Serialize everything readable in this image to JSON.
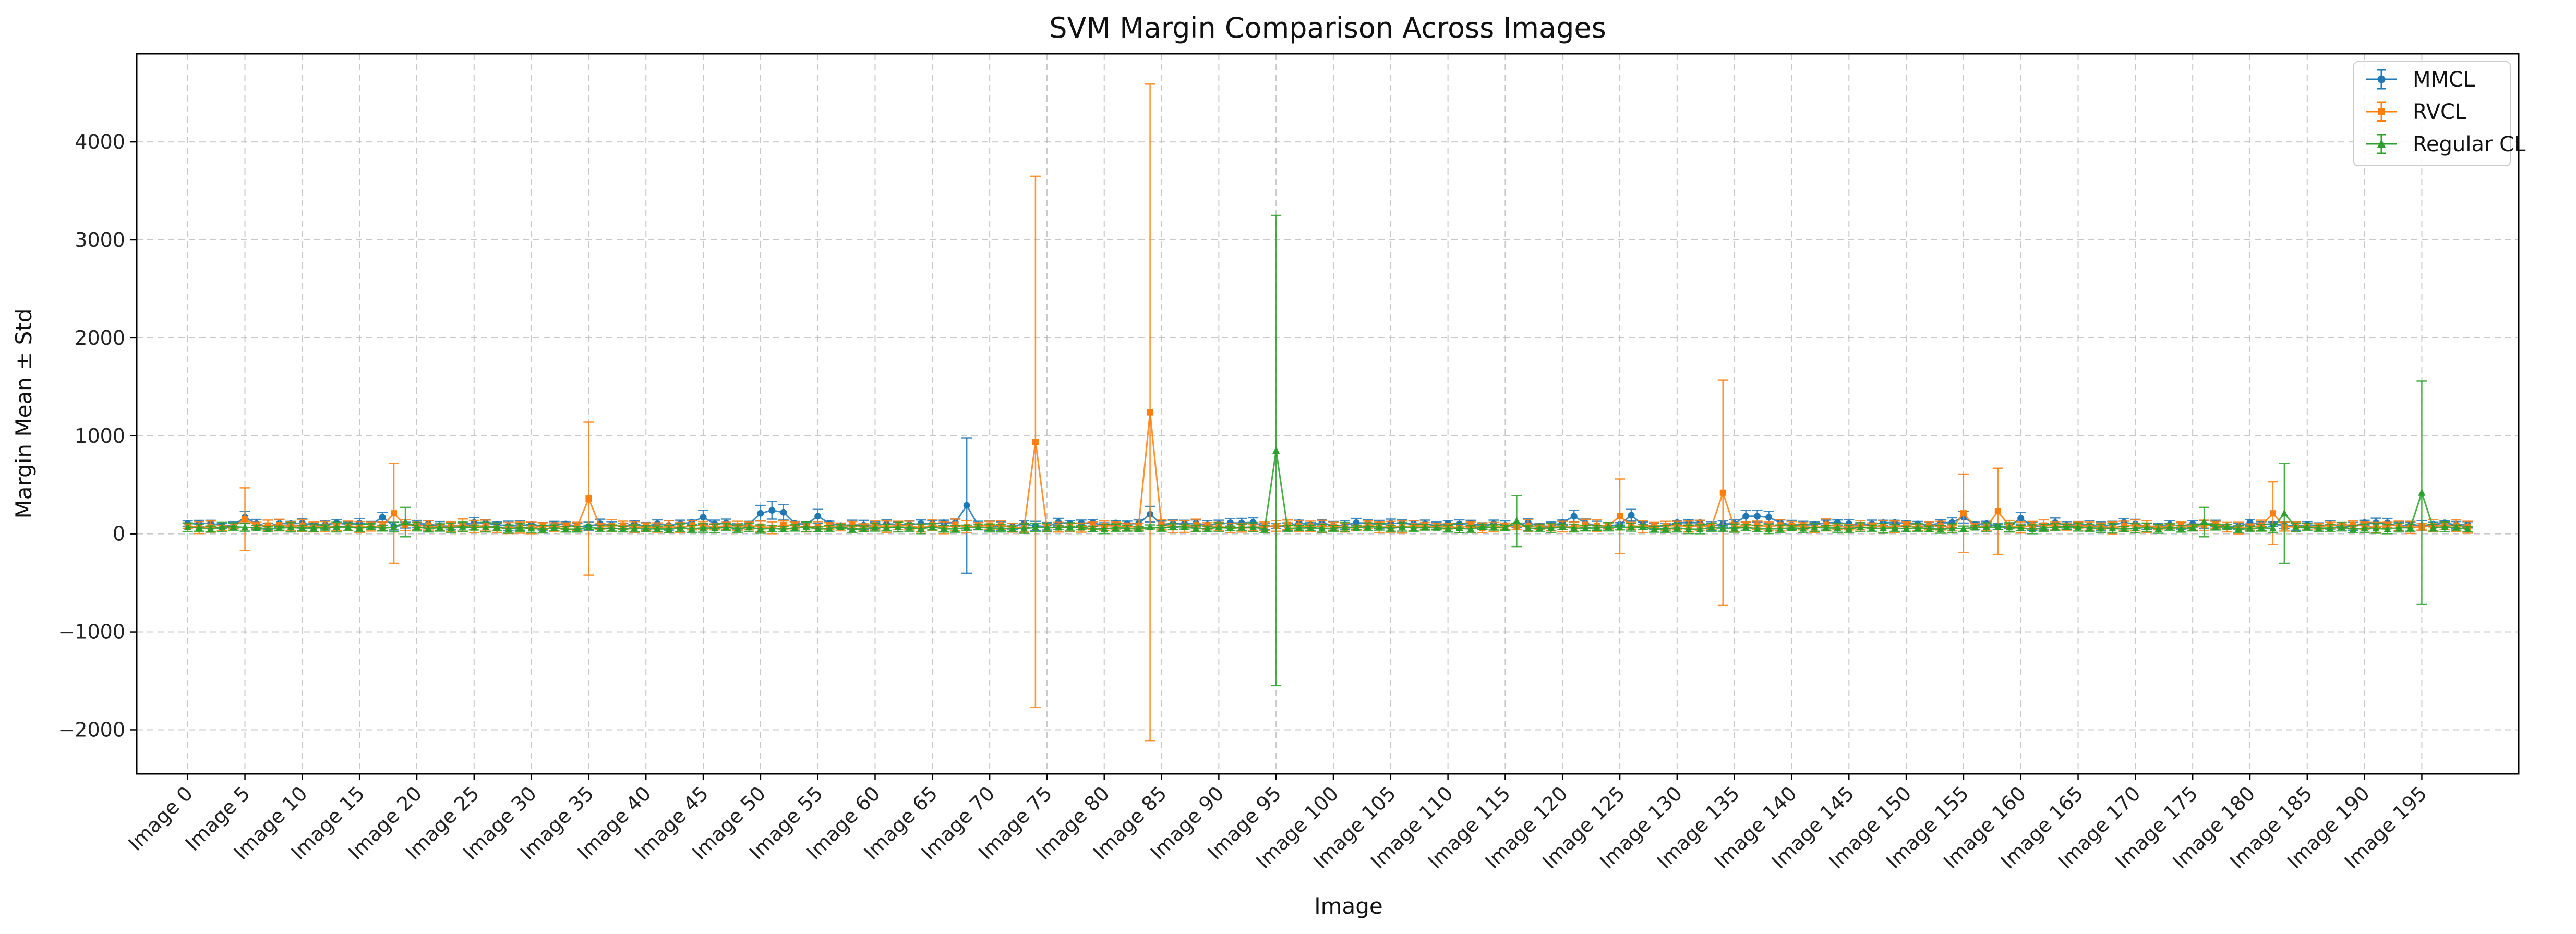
{
  "chart_data": {
    "type": "line",
    "title": "SVM Margin Comparison Across Images",
    "xlabel": "Image",
    "ylabel": "Margin Mean ± Std",
    "ylim": [
      -2450,
      4900
    ],
    "yticks": [
      -2000,
      -1000,
      0,
      1000,
      2000,
      3000,
      4000
    ],
    "ytick_labels": [
      "−2000",
      "−1000",
      "0",
      "1000",
      "2000",
      "3000",
      "4000"
    ],
    "grid": true,
    "legend_position": "top-right",
    "x_count": 200,
    "xtick_step": 5,
    "xtick_prefix": "Image ",
    "error_bars": "mean ± std",
    "series": [
      {
        "name": "MMCL",
        "color": "#1f77b4",
        "marker": "circle",
        "baseline": 95,
        "baseline_std": 35,
        "points": [
          {
            "x": 5,
            "y": 170,
            "std": 60
          },
          {
            "x": 17,
            "y": 170,
            "std": 50
          },
          {
            "x": 45,
            "y": 170,
            "std": 70
          },
          {
            "x": 50,
            "y": 210,
            "std": 80
          },
          {
            "x": 51,
            "y": 240,
            "std": 90
          },
          {
            "x": 52,
            "y": 220,
            "std": 80
          },
          {
            "x": 55,
            "y": 180,
            "std": 70
          },
          {
            "x": 68,
            "y": 290,
            "std": 690
          },
          {
            "x": 84,
            "y": 200,
            "std": 80
          },
          {
            "x": 121,
            "y": 180,
            "std": 60
          },
          {
            "x": 126,
            "y": 190,
            "std": 60
          },
          {
            "x": 136,
            "y": 180,
            "std": 60
          },
          {
            "x": 137,
            "y": 180,
            "std": 60
          },
          {
            "x": 138,
            "y": 170,
            "std": 60
          },
          {
            "x": 155,
            "y": 170,
            "std": 60
          },
          {
            "x": 160,
            "y": 160,
            "std": 60
          }
        ]
      },
      {
        "name": "RVCL",
        "color": "#ff7f0e",
        "marker": "square",
        "baseline": 75,
        "baseline_std": 45,
        "points": [
          {
            "x": 5,
            "y": 150,
            "std": 320
          },
          {
            "x": 18,
            "y": 210,
            "std": 510
          },
          {
            "x": 35,
            "y": 360,
            "std": 780
          },
          {
            "x": 74,
            "y": 940,
            "std": 2710
          },
          {
            "x": 84,
            "y": 1240,
            "std": 3350
          },
          {
            "x": 125,
            "y": 180,
            "std": 380
          },
          {
            "x": 134,
            "y": 420,
            "std": 1150
          },
          {
            "x": 155,
            "y": 210,
            "std": 400
          },
          {
            "x": 158,
            "y": 230,
            "std": 440
          },
          {
            "x": 182,
            "y": 210,
            "std": 320
          }
        ]
      },
      {
        "name": "Regular CL",
        "color": "#2ca02c",
        "marker": "triangle",
        "baseline": 60,
        "baseline_std": 35,
        "points": [
          {
            "x": 19,
            "y": 120,
            "std": 150
          },
          {
            "x": 95,
            "y": 850,
            "std": 2400
          },
          {
            "x": 116,
            "y": 130,
            "std": 260
          },
          {
            "x": 176,
            "y": 120,
            "std": 150
          },
          {
            "x": 183,
            "y": 210,
            "std": 510
          },
          {
            "x": 195,
            "y": 420,
            "std": 1140
          }
        ]
      }
    ]
  }
}
